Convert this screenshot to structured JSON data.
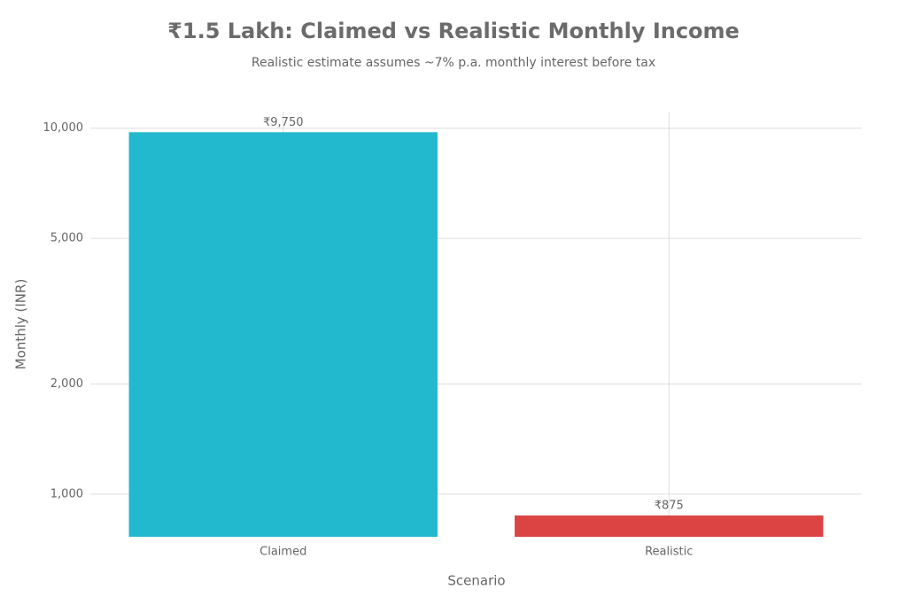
{
  "chart_data": {
    "type": "bar",
    "title": "₹1.5 Lakh: Claimed vs Realistic Monthly Income",
    "subtitle": "Realistic estimate assumes ~7% p.a. monthly interest before tax",
    "x_label": "Scenario",
    "y_label": "Monthly (INR)",
    "categories": [
      "Claimed",
      "Realistic"
    ],
    "values": [
      9750,
      875
    ],
    "value_labels": [
      "₹9,750",
      "₹875"
    ],
    "colors": [
      "#22b8cd",
      "#dc4444"
    ],
    "log_y": true,
    "ylim": [
      765,
      11100
    ],
    "yticks": [
      {
        "value": 1000,
        "label": "1,000"
      },
      {
        "value": 2000,
        "label": "2,000"
      },
      {
        "value": 5000,
        "label": "5,000"
      },
      {
        "value": 10000,
        "label": "10,000"
      }
    ],
    "grid": true
  }
}
